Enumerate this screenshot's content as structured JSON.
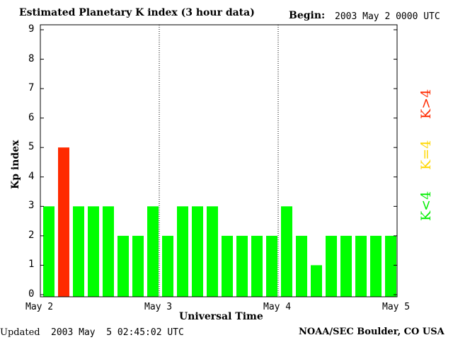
{
  "chart_data": {
    "type": "bar",
    "title": "Estimated Planetary K index (3 hour data)",
    "xlabel": "Universal Time",
    "ylabel": "Kp index",
    "ylim": [
      0,
      9
    ],
    "yticks": [
      "0",
      "1",
      "2",
      "3",
      "4",
      "5",
      "6",
      "7",
      "8",
      "9"
    ],
    "xticks": [
      "May 2",
      "May 3",
      "May 4",
      "May 5"
    ],
    "bar_count": 24,
    "values": [
      3,
      5,
      3,
      3,
      3,
      2,
      2,
      3,
      2,
      3,
      3,
      3,
      2,
      2,
      2,
      2,
      3,
      2,
      1,
      2,
      2,
      2,
      2,
      2
    ],
    "day_dividers_after_bar": [
      8,
      16
    ],
    "colors": {
      "below4": "#00ff00",
      "equal4": "#ffd700",
      "above4": "#ff2a00"
    },
    "legend": [
      {
        "label": "K<4",
        "color": "#00ff00"
      },
      {
        "label": "K=4",
        "color": "#ffd700"
      },
      {
        "label": "K>4",
        "color": "#ff2a00"
      }
    ],
    "grid": false
  },
  "header": {
    "begin_label": "Begin:",
    "begin_value": "2003 May 2 0000 UTC"
  },
  "footer": {
    "updated_label": "Updated",
    "updated_value": "2003 May  5 02:45:02 UTC",
    "source": "NOAA/SEC Boulder, CO USA"
  }
}
